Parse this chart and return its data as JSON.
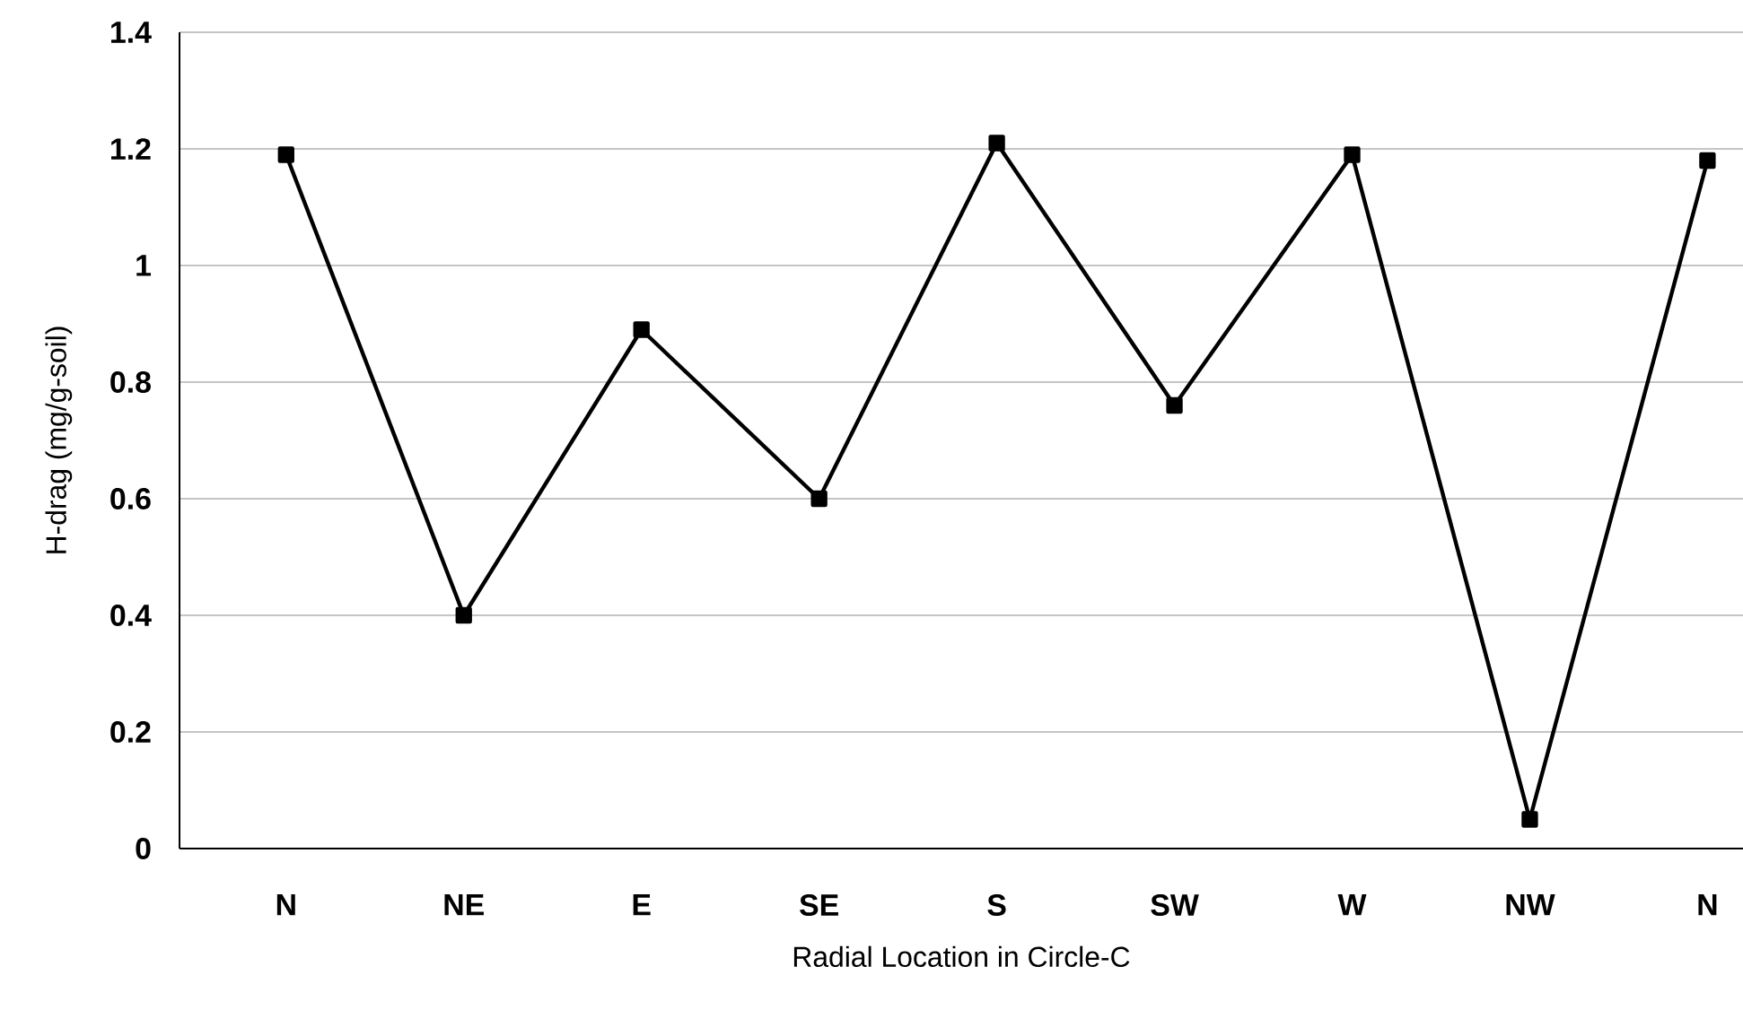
{
  "chart_data": {
    "type": "line",
    "xlabel": "Radial Location in Circle-C",
    "ylabel": "H-drag (mg/g-soil)",
    "categories": [
      "N",
      "NE",
      "E",
      "SE",
      "S",
      "SW",
      "W",
      "NW",
      "N"
    ],
    "values": [
      1.19,
      0.4,
      0.89,
      0.6,
      1.21,
      0.76,
      1.19,
      0.05,
      1.18
    ],
    "color": "#000000",
    "marker": "square",
    "line_style": "solid",
    "ylim": [
      0,
      1.4
    ],
    "yticks": [
      0,
      0.2,
      0.4,
      0.6,
      0.8,
      1,
      1.2,
      1.4
    ],
    "grid": "y"
  }
}
